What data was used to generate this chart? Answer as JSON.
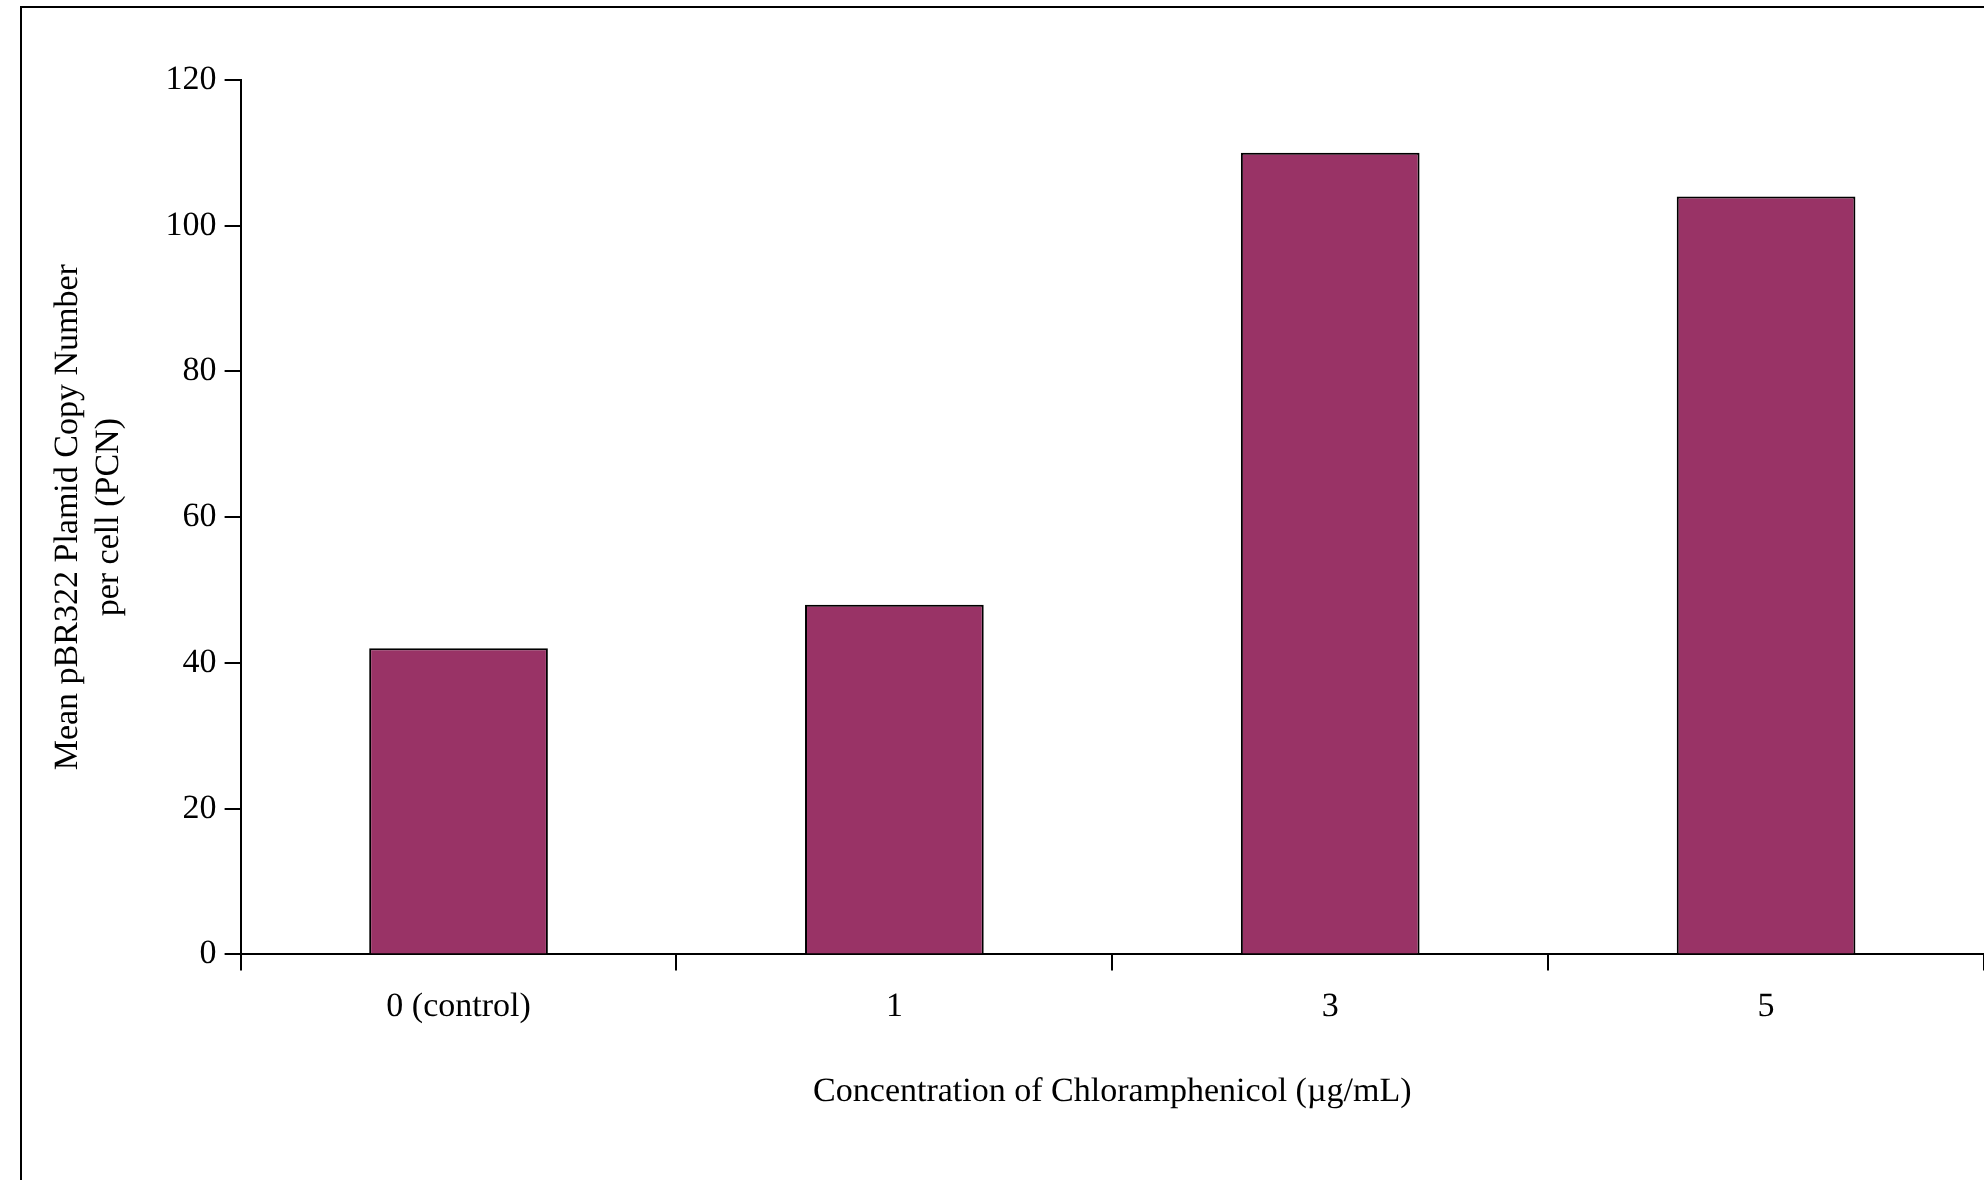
{
  "chart_data": {
    "type": "bar",
    "xlabel": "Concentration of Chloramphenicol (µg/mL)",
    "ylabel": "Mean pBR322 Plamid Copy Number\nper cell (PCN)",
    "categories": [
      "0 (control)",
      "1",
      "3",
      "5"
    ],
    "values": [
      42,
      48,
      110,
      104
    ],
    "color": "#993366",
    "ylim": [
      0,
      120
    ],
    "yticks": [
      0,
      20,
      40,
      60,
      80,
      100,
      120
    ],
    "grid": false,
    "legend": false
  }
}
